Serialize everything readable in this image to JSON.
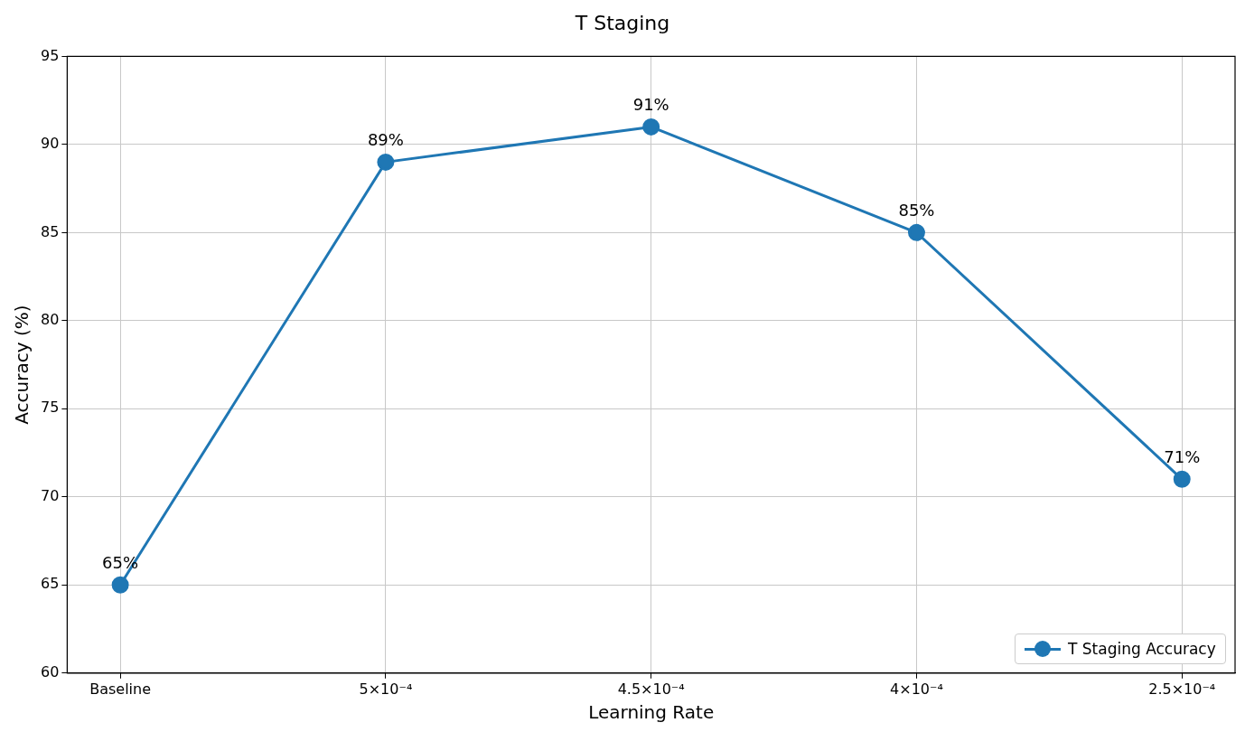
{
  "chart_data": {
    "type": "line",
    "title": "T Staging",
    "xlabel": "Learning Rate",
    "ylabel": "Accuracy (%)",
    "categories": [
      "Baseline",
      "5×10⁻⁴",
      "4.5×10⁻⁴",
      "4×10⁻⁴",
      "2.5×10⁻⁴"
    ],
    "series": [
      {
        "name": "T Staging Accuracy",
        "color": "#1f77b4",
        "values": [
          65,
          89,
          91,
          85,
          71
        ],
        "value_labels": [
          "65%",
          "89%",
          "91%",
          "85%",
          "71%"
        ]
      }
    ],
    "ylim": [
      60,
      95
    ],
    "yticks": [
      60,
      65,
      70,
      75,
      80,
      85,
      90,
      95
    ],
    "grid": true,
    "legend": "bottom right",
    "marker": "circle",
    "line_style": "solid"
  }
}
